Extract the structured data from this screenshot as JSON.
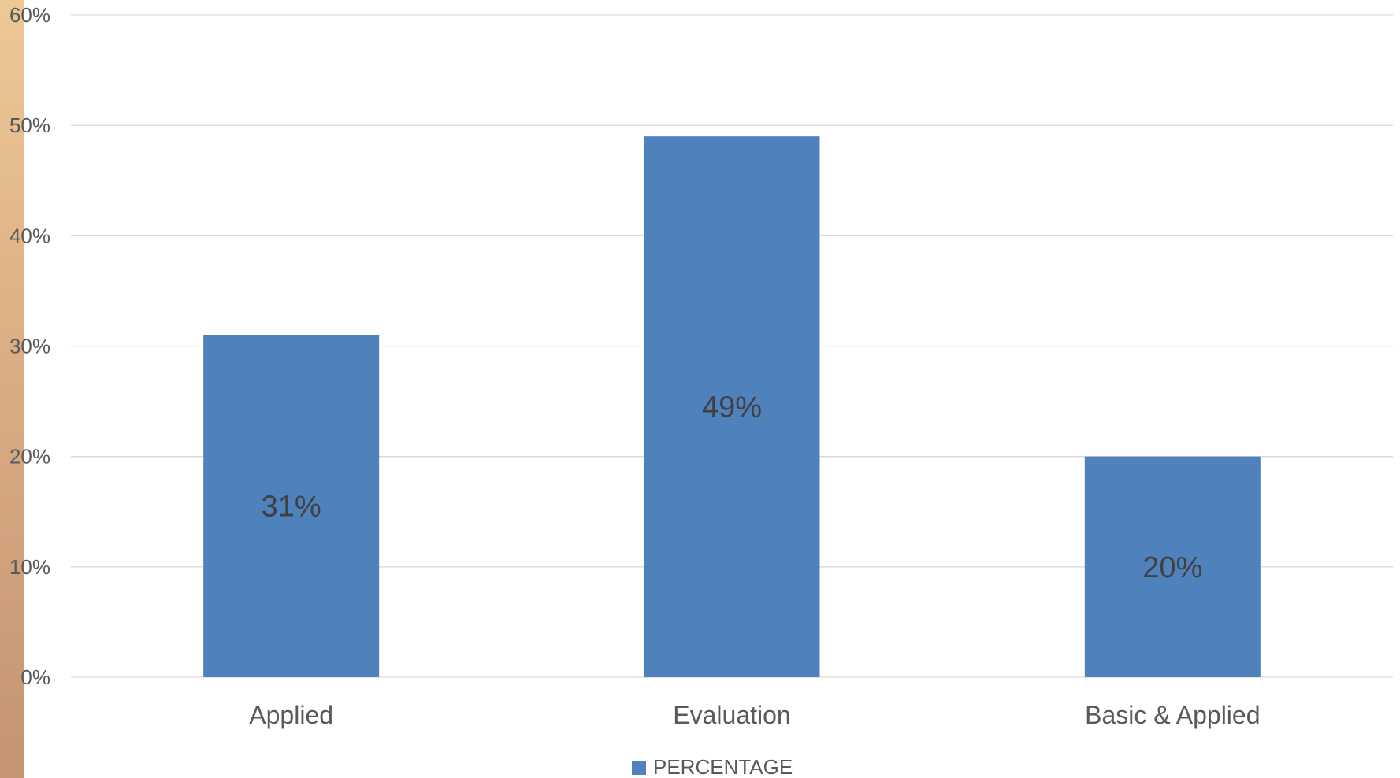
{
  "chart_data": {
    "type": "bar",
    "categories": [
      "Applied",
      "Evaluation",
      "Basic & Applied"
    ],
    "series": [
      {
        "name": "PERCENTAGE",
        "values": [
          31,
          49,
          20
        ],
        "labels": [
          "31%",
          "49%",
          "20%"
        ],
        "color": "#4f81bd"
      }
    ],
    "ylim": [
      0,
      60
    ],
    "yticks": [
      0,
      10,
      20,
      30,
      40,
      50,
      60
    ],
    "ytick_labels": [
      "0%",
      "10%",
      "20%",
      "30%",
      "40%",
      "50%",
      "60%"
    ],
    "grid": true,
    "legend": "bottom-center",
    "title": "",
    "xlabel": "",
    "ylabel": ""
  }
}
